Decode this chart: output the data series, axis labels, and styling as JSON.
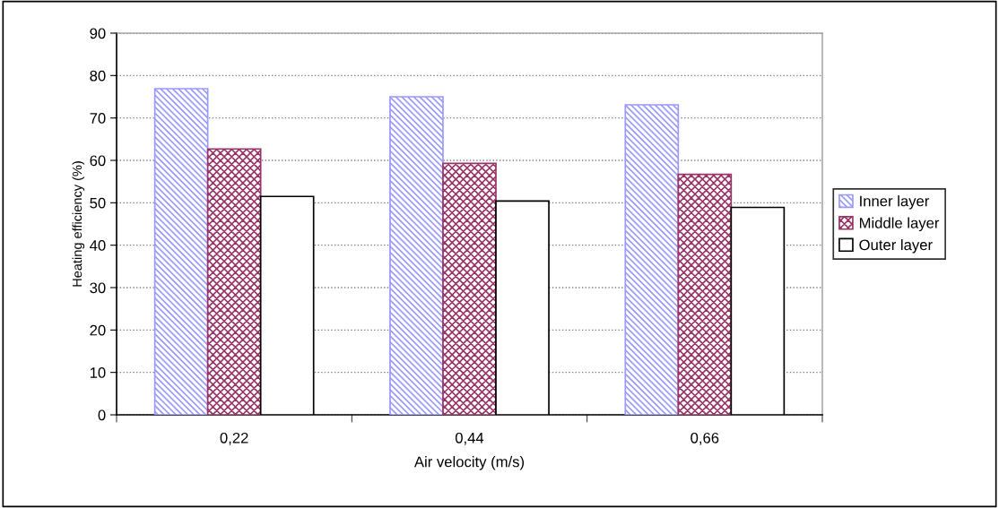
{
  "chart_data": {
    "type": "bar",
    "xlabel": "Air velocity (m/s)",
    "ylabel": "Heating efficiency (%)",
    "categories": [
      "0,22",
      "0,44",
      "0,66"
    ],
    "series": [
      {
        "name": "Inner layer",
        "color": "#9999ff",
        "values": [
          76.9,
          75.0,
          73.1
        ]
      },
      {
        "name": "Middle layer",
        "color": "#993366",
        "values": [
          62.7,
          59.3,
          56.7
        ]
      },
      {
        "name": "Outer layer",
        "color": "#ffffff",
        "values": [
          51.5,
          50.4,
          48.9
        ]
      }
    ],
    "ylim": [
      0,
      90
    ],
    "yticks": [
      0,
      10,
      20,
      30,
      40,
      50,
      60,
      70,
      80,
      90
    ],
    "grid": "y",
    "legend": "right"
  }
}
